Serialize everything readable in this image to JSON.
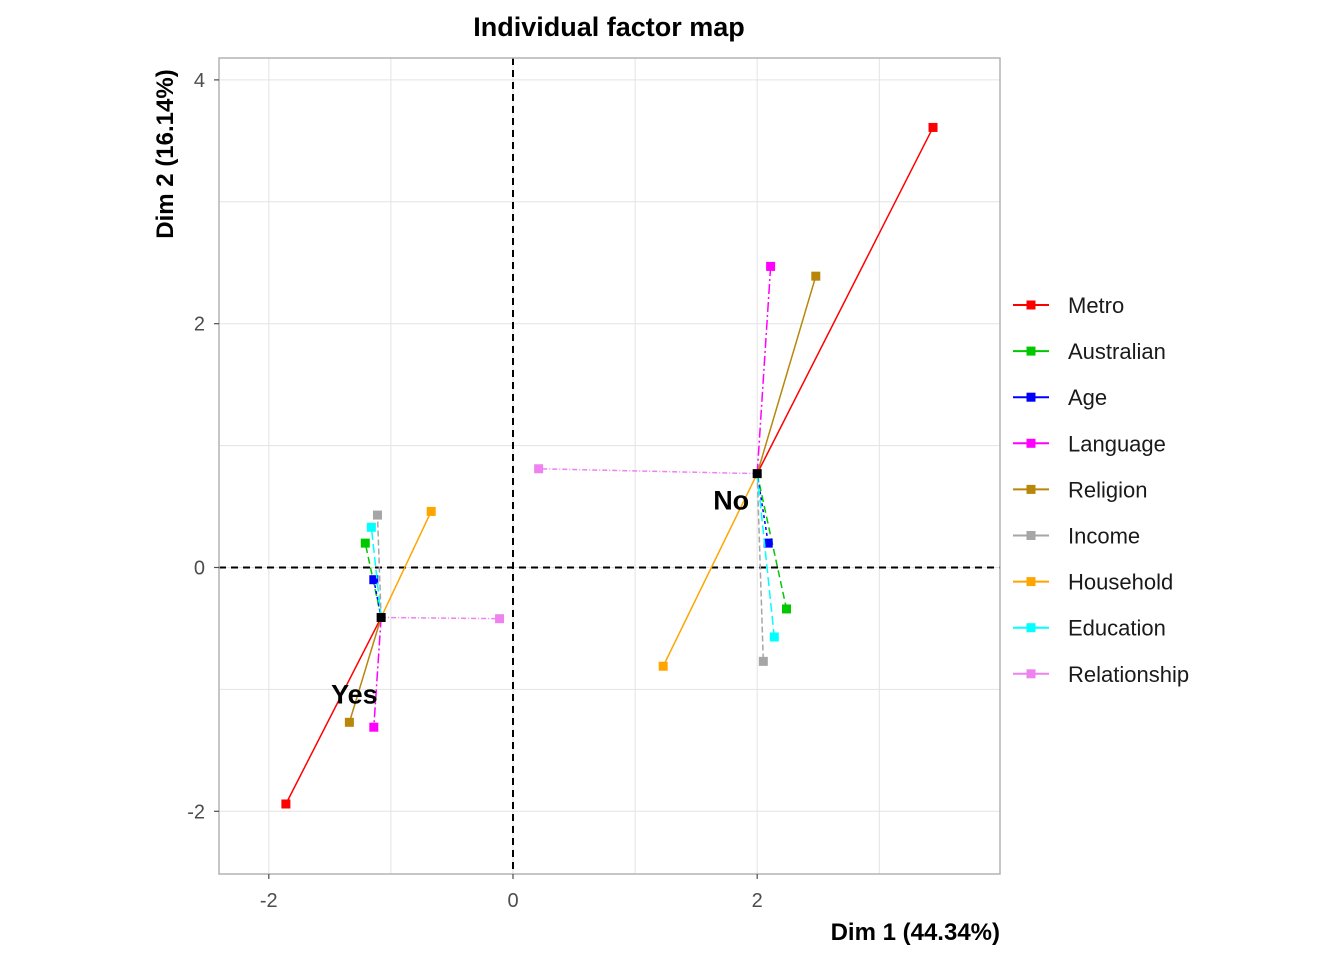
{
  "chart_data": {
    "type": "scatter",
    "title": "Individual factor map",
    "xlabel": "Dim 1 (44.34%)",
    "ylabel": "Dim 2 (16.14%)",
    "xlim": [
      -2.5,
      3.9
    ],
    "ylim": [
      -2.52,
      4.2
    ],
    "x_ticks": [
      -2,
      0,
      2
    ],
    "y_ticks": [
      -2,
      0,
      2,
      4
    ],
    "grid": true,
    "reference_lines": {
      "x": 0,
      "y": 0
    },
    "legend_position": "right",
    "centers": [
      {
        "label": "Yes",
        "x": -1.08,
        "y": -0.41
      },
      {
        "label": "No",
        "x": 2.0,
        "y": 0.77
      }
    ],
    "series": [
      {
        "name": "Metro",
        "color": "#ff0000",
        "points": [
          [
            -1.86,
            -1.94
          ],
          [
            3.44,
            3.61
          ]
        ]
      },
      {
        "name": "Australian",
        "color": "#00c800",
        "points": [
          [
            -1.21,
            0.2
          ],
          [
            2.24,
            -0.34
          ]
        ]
      },
      {
        "name": "Age",
        "color": "#0000ff",
        "points": [
          [
            -1.14,
            -0.1
          ],
          [
            2.09,
            0.2
          ]
        ]
      },
      {
        "name": "Language",
        "color": "#ff00ff",
        "points": [
          [
            -1.14,
            -1.31
          ],
          [
            2.11,
            2.47
          ]
        ]
      },
      {
        "name": "Religion",
        "color": "#b8860b",
        "points": [
          [
            -1.34,
            -1.27
          ],
          [
            2.48,
            2.39
          ]
        ]
      },
      {
        "name": "Income",
        "color": "#a6a6a6",
        "points": [
          [
            -1.11,
            0.43
          ],
          [
            2.05,
            -0.77
          ]
        ]
      },
      {
        "name": "Household",
        "color": "#ffa500",
        "points": [
          [
            -0.67,
            0.46
          ],
          [
            1.23,
            -0.81
          ]
        ]
      },
      {
        "name": "Education",
        "color": "#00ffff",
        "points": [
          [
            -1.16,
            0.33
          ],
          [
            2.14,
            -0.57
          ]
        ]
      },
      {
        "name": "Relationship",
        "color": "#ee82ee",
        "points": [
          [
            -0.11,
            -0.42
          ],
          [
            0.21,
            0.81
          ]
        ]
      }
    ]
  }
}
